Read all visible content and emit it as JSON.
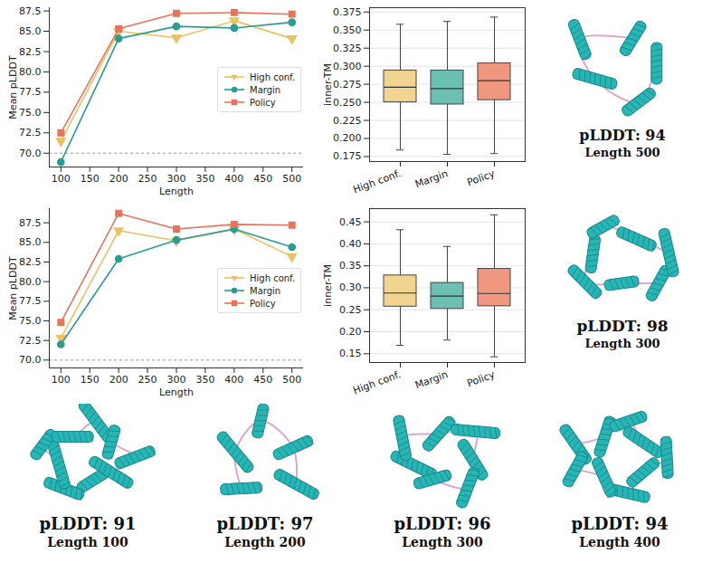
{
  "chart_data": [
    {
      "type": "line",
      "xlabel": "Length",
      "ylabel": "Mean pLDDT",
      "x": [
        100,
        200,
        300,
        400,
        500
      ],
      "xlim": [
        80,
        520
      ],
      "xticks": [
        100,
        150,
        200,
        250,
        300,
        350,
        400,
        450,
        500
      ],
      "ylim": [
        68.3,
        87.9
      ],
      "yticks": [
        {
          "value": 70,
          "label": "70.0"
        },
        72.5,
        {
          "value": 75,
          "label": "75.0"
        },
        77.5,
        {
          "value": 80,
          "label": "80.0"
        },
        82.5,
        {
          "value": 85,
          "label": "85.0"
        },
        87.5
      ],
      "reference_line": 70,
      "grid": false,
      "legend": "center right",
      "series": [
        {
          "name": "High conf.",
          "color": "#edc160",
          "marker": "triangle-down",
          "values": [
            71.5,
            85.0,
            84.2,
            86.3,
            84.1
          ]
        },
        {
          "name": "Margin",
          "color": "#2a9d8f",
          "marker": "circle",
          "values": [
            68.9,
            84.1,
            85.6,
            85.4,
            86.1
          ]
        },
        {
          "name": "Policy",
          "color": "#e8735a",
          "marker": "square",
          "values": [
            72.5,
            85.3,
            87.2,
            87.3,
            87.1
          ]
        }
      ]
    },
    {
      "type": "box",
      "ylabel": "inner-TM",
      "categories": [
        "High conf.",
        "Margin",
        "Policy"
      ],
      "colors": [
        "#f2d491",
        "#6cc0b3",
        "#ef977f"
      ],
      "min": [
        0.184,
        0.178,
        0.179
      ],
      "q1": [
        0.25,
        0.247,
        0.253
      ],
      "median": [
        0.271,
        0.269,
        0.28
      ],
      "q3": [
        0.294,
        0.294,
        0.304
      ],
      "max": [
        0.358,
        0.362,
        0.368
      ],
      "ylim": [
        0.168,
        0.381
      ],
      "yticks": [
        0.175,
        {
          "value": 0.2,
          "label": "0.200"
        },
        0.225,
        {
          "value": 0.25,
          "label": "0.250"
        },
        0.275,
        {
          "value": 0.3,
          "label": "0.300"
        },
        0.325,
        {
          "value": 0.35,
          "label": "0.350"
        },
        0.375
      ],
      "grid": true
    },
    {
      "type": "line",
      "xlabel": "Length",
      "ylabel": "Mean pLDDT",
      "x": [
        100,
        200,
        300,
        400,
        500
      ],
      "xlim": [
        80,
        520
      ],
      "xticks": [
        100,
        150,
        200,
        250,
        300,
        350,
        400,
        450,
        500
      ],
      "ylim": [
        69.0,
        89.3
      ],
      "yticks": [
        {
          "value": 70,
          "label": "70.0"
        },
        72.5,
        {
          "value": 75,
          "label": "75.0"
        },
        77.5,
        {
          "value": 80,
          "label": "80.0"
        },
        82.5,
        {
          "value": 85,
          "label": "85.0"
        },
        87.5
      ],
      "reference_line": 70,
      "grid": false,
      "legend": "center right",
      "series": [
        {
          "name": "High conf.",
          "color": "#edc160",
          "marker": "triangle-down",
          "values": [
            72.8,
            86.5,
            85.2,
            86.7,
            83.2
          ]
        },
        {
          "name": "Margin",
          "color": "#2a9d8f",
          "marker": "circle",
          "values": [
            72.0,
            82.9,
            85.3,
            86.7,
            84.4
          ]
        },
        {
          "name": "Policy",
          "color": "#e8735a",
          "marker": "square",
          "values": [
            74.8,
            88.7,
            86.7,
            87.3,
            87.2
          ]
        }
      ]
    },
    {
      "type": "box",
      "ylabel": "inner-TM",
      "categories": [
        "High conf.",
        "Margin",
        "Policy"
      ],
      "colors": [
        "#f2d491",
        "#6cc0b3",
        "#ef977f"
      ],
      "min": [
        0.169,
        0.181,
        0.143
      ],
      "q1": [
        0.257,
        0.252,
        0.258
      ],
      "median": [
        0.288,
        0.281,
        0.287
      ],
      "q3": [
        0.328,
        0.311,
        0.343
      ],
      "max": [
        0.432,
        0.394,
        0.466
      ],
      "ylim": [
        0.13,
        0.48
      ],
      "yticks": [
        {
          "value": 0.15,
          "label": "0.15"
        },
        {
          "value": 0.2,
          "label": "0.20"
        },
        0.25,
        {
          "value": 0.3,
          "label": "0.30"
        },
        0.35,
        {
          "value": 0.4,
          "label": "0.40"
        },
        0.45
      ],
      "grid": true
    }
  ],
  "structures": [
    {
      "score": "pLDDT: 94",
      "length": "Length 500"
    },
    {
      "score": "pLDDT: 98",
      "length": "Length 300"
    },
    {
      "score": "pLDDT: 91",
      "length": "Length 100"
    },
    {
      "score": "pLDDT: 97",
      "length": "Length 200"
    },
    {
      "score": "pLDDT: 96",
      "length": "Length 300"
    },
    {
      "score": "pLDDT: 94",
      "length": "Length 400"
    }
  ]
}
